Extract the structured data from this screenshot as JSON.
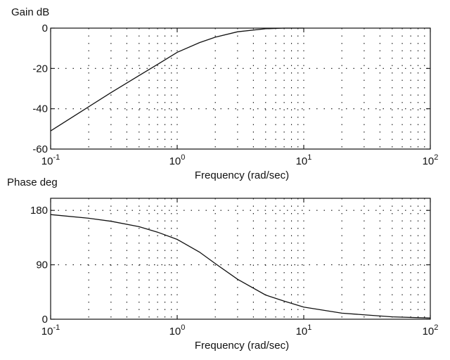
{
  "chart_data": [
    {
      "type": "line",
      "ylabel": "Gain dB",
      "xlabel": "Frequency (rad/sec)",
      "x_scale": "log",
      "xlim": [
        0.1,
        100
      ],
      "ylim": [
        -60,
        0
      ],
      "x_ticks": [
        {
          "value": 0.1,
          "base": "10",
          "exp": "-1"
        },
        {
          "value": 1,
          "base": "10",
          "exp": "0"
        },
        {
          "value": 10,
          "base": "10",
          "exp": "1"
        },
        {
          "value": 100,
          "base": "10",
          "exp": "2"
        }
      ],
      "y_ticks": [
        0,
        -20,
        -40,
        -60
      ],
      "grid": true,
      "series": [
        {
          "x": [
            0.1,
            0.2,
            0.3,
            0.5,
            0.7,
            1,
            1.5,
            2,
            3,
            5,
            7,
            10
          ],
          "y": [
            -51,
            -39,
            -32,
            -23.5,
            -18,
            -12,
            -7.2,
            -4.5,
            -1.8,
            -0.3,
            0,
            0
          ]
        }
      ]
    },
    {
      "type": "line",
      "ylabel": "Phase deg",
      "xlabel": "Frequency (rad/sec)",
      "x_scale": "log",
      "xlim": [
        0.1,
        100
      ],
      "ylim": [
        0,
        200
      ],
      "x_ticks": [
        {
          "value": 0.1,
          "base": "10",
          "exp": "-1"
        },
        {
          "value": 1,
          "base": "10",
          "exp": "0"
        },
        {
          "value": 10,
          "base": "10",
          "exp": "1"
        },
        {
          "value": 100,
          "base": "10",
          "exp": "2"
        }
      ],
      "y_ticks": [
        180,
        90,
        0
      ],
      "grid": true,
      "series": [
        {
          "x": [
            0.1,
            0.2,
            0.3,
            0.5,
            0.7,
            1,
            1.5,
            2,
            3,
            5,
            7,
            10,
            20,
            50,
            100
          ],
          "y": [
            173,
            167,
            162,
            153,
            144,
            132,
            111,
            92,
            66,
            40,
            30,
            20,
            10,
            4,
            2
          ]
        }
      ]
    }
  ]
}
